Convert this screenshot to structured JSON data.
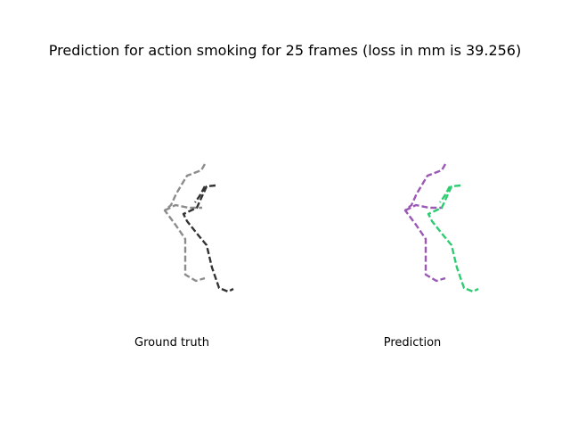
{
  "figure": {
    "title": "Prediction for action smoking for 25 frames (loss in mm is 39.256)",
    "panels": [
      {
        "caption": "Ground truth",
        "colors": {
          "left": "#8c8c8c",
          "right": "#333333"
        }
      },
      {
        "caption": "Prediction",
        "colors": {
          "left": "#9b59b6",
          "right": "#2ecc71"
        }
      }
    ]
  }
}
